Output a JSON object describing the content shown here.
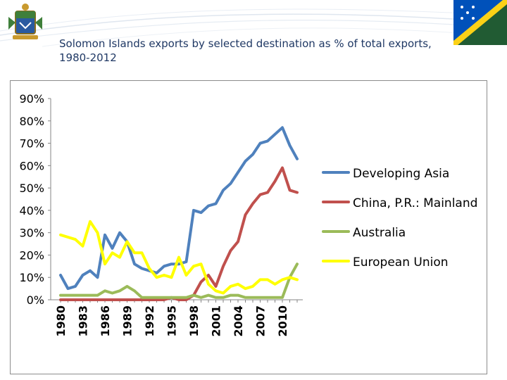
{
  "slide": {
    "title": "Solomon Islands exports by selected destination as % of total exports, 1980-2012"
  },
  "chart_data": {
    "type": "line",
    "title": "",
    "xlabel": "",
    "ylabel": "",
    "ylim": [
      0,
      90
    ],
    "y_ticks": [
      "0%",
      "10%",
      "20%",
      "30%",
      "40%",
      "50%",
      "60%",
      "70%",
      "80%",
      "90%"
    ],
    "x": [
      1980,
      1981,
      1982,
      1983,
      1984,
      1985,
      1986,
      1987,
      1988,
      1989,
      1990,
      1991,
      1992,
      1993,
      1994,
      1995,
      1996,
      1997,
      1998,
      1999,
      2000,
      2001,
      2002,
      2003,
      2004,
      2005,
      2006,
      2007,
      2008,
      2009,
      2010,
      2011,
      2012
    ],
    "x_tick_labels": [
      "1980",
      "1983",
      "1986",
      "1989",
      "1992",
      "1995",
      "1998",
      "2001",
      "2004",
      "2007",
      "2010"
    ],
    "grid": false,
    "legend_position": "right",
    "series": [
      {
        "name": "Developing Asia",
        "color": "#4f81bd",
        "values": [
          11,
          5,
          6,
          11,
          13,
          10,
          29,
          23,
          30,
          26,
          16,
          14,
          13,
          12,
          15,
          16,
          16,
          17,
          40,
          39,
          42,
          43,
          49,
          52,
          57,
          62,
          65,
          70,
          71,
          74,
          77,
          69,
          63
        ]
      },
      {
        "name": "China, P.R.: Mainland",
        "color": "#c0504d",
        "values": [
          0,
          0,
          0,
          0,
          0,
          0,
          0,
          0,
          0,
          0,
          0,
          0,
          0,
          0,
          0,
          1,
          0,
          0,
          2,
          8,
          11,
          6,
          15,
          22,
          26,
          38,
          43,
          47,
          48,
          53,
          59,
          49,
          48
        ]
      },
      {
        "name": "Australia",
        "color": "#9bbb59",
        "values": [
          2,
          2,
          2,
          2,
          2,
          2,
          4,
          3,
          4,
          6,
          4,
          1,
          1,
          1,
          1,
          1,
          1,
          1,
          2,
          1,
          2,
          1,
          1,
          2,
          2,
          1,
          1,
          1,
          1,
          1,
          1,
          10,
          16
        ]
      },
      {
        "name": "European Union",
        "color": "#ffff00",
        "values": [
          29,
          28,
          27,
          24,
          35,
          30,
          16,
          21,
          19,
          26,
          21,
          21,
          14,
          10,
          11,
          10,
          19,
          11,
          15,
          16,
          7,
          4,
          3,
          6,
          7,
          5,
          6,
          9,
          9,
          7,
          9,
          10,
          9
        ]
      }
    ]
  }
}
